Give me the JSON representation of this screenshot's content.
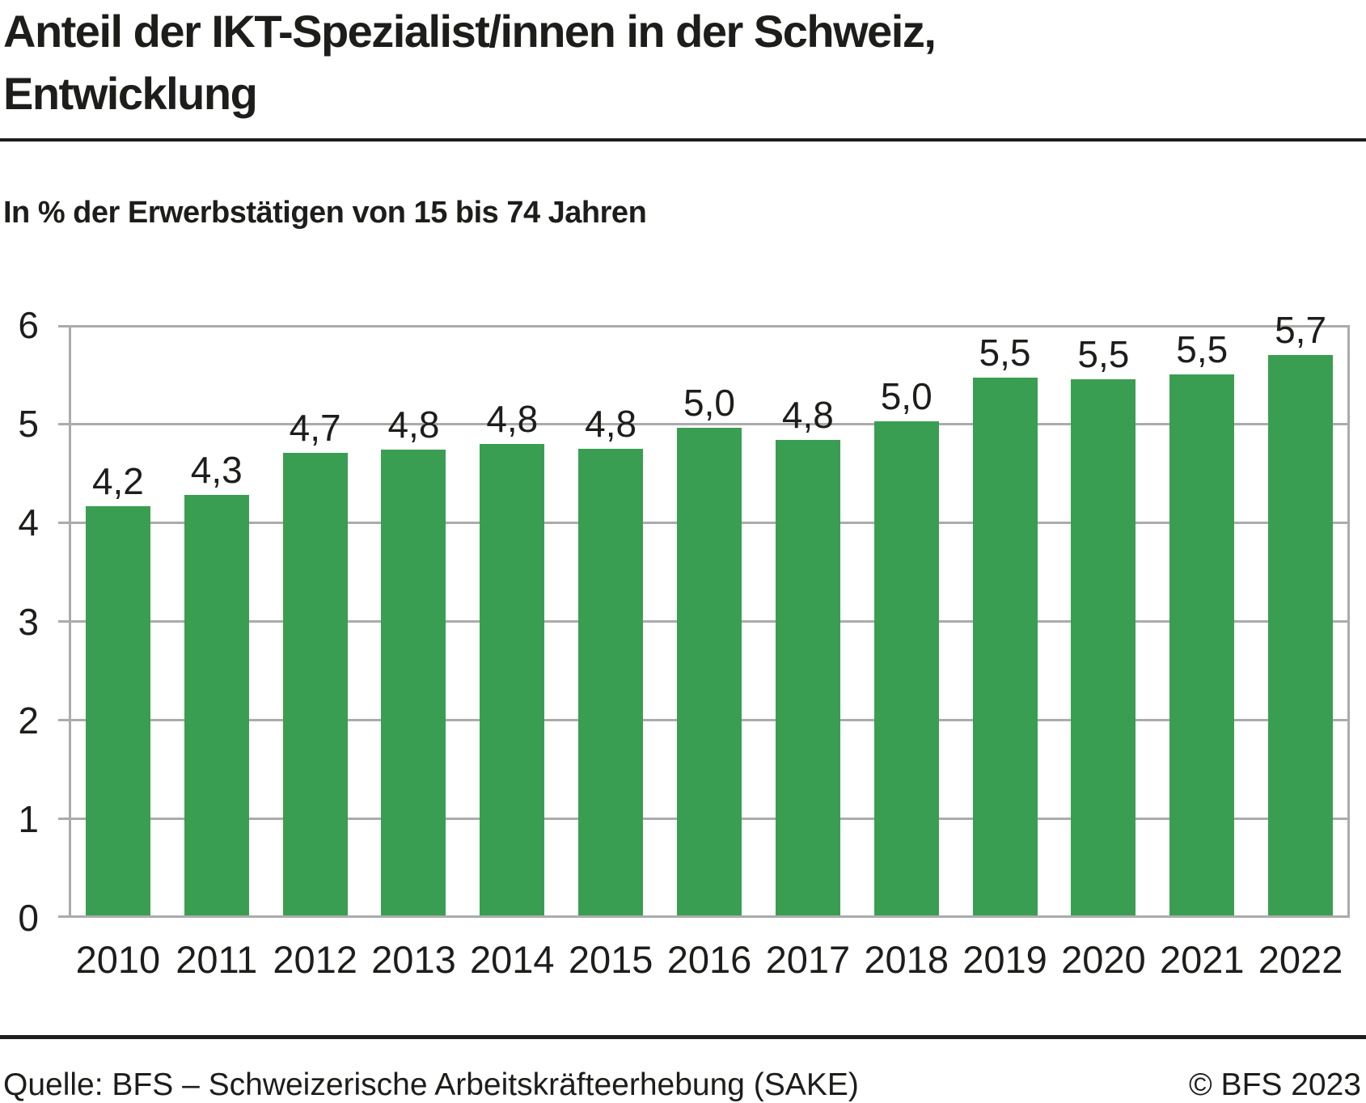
{
  "header": {
    "title_line1": "Anteil der IKT-Spezialist/innen in der Schweiz,",
    "title_line2": "Entwicklung",
    "subtitle": "In % der Erwerbstätigen von 15 bis 74 Jahren"
  },
  "chart_data": {
    "type": "bar",
    "title": "Anteil der IKT-Spezialist/innen in der Schweiz, Entwicklung",
    "subtitle": "In % der Erwerbstätigen von 15 bis 74 Jahren",
    "categories": [
      "2010",
      "2011",
      "2012",
      "2013",
      "2014",
      "2015",
      "2016",
      "2017",
      "2018",
      "2019",
      "2020",
      "2021",
      "2022"
    ],
    "values": [
      4.2,
      4.3,
      4.7,
      4.8,
      4.8,
      4.8,
      5.0,
      4.8,
      5.0,
      5.5,
      5.5,
      5.5,
      5.7
    ],
    "values_precise": [
      4.17,
      4.28,
      4.71,
      4.74,
      4.8,
      4.75,
      4.96,
      4.84,
      5.03,
      5.47,
      5.45,
      5.5,
      5.7
    ],
    "value_labels": [
      "4,2",
      "4,3",
      "4,7",
      "4,8",
      "4,8",
      "4,8",
      "5,0",
      "4,8",
      "5,0",
      "5,5",
      "5,5",
      "5,5",
      "5,7"
    ],
    "xlabel": "",
    "ylabel": "",
    "ylim": [
      0,
      6
    ],
    "yticks": [
      0,
      1,
      2,
      3,
      4,
      5,
      6
    ],
    "ytick_labels": [
      "0",
      "1",
      "2",
      "3",
      "4",
      "5",
      "6"
    ],
    "grid": true,
    "legend": false
  },
  "colors": {
    "bar": "#3a9e52",
    "grid": "#ababab",
    "axis": "#ababab",
    "text": "#1d1d1b",
    "rule": "#1d1d1b"
  },
  "footer": {
    "source": "Quelle: BFS – Schweizerische Arbeitskräfteerhebung (SAKE)",
    "copyright": "© BFS 2023"
  }
}
